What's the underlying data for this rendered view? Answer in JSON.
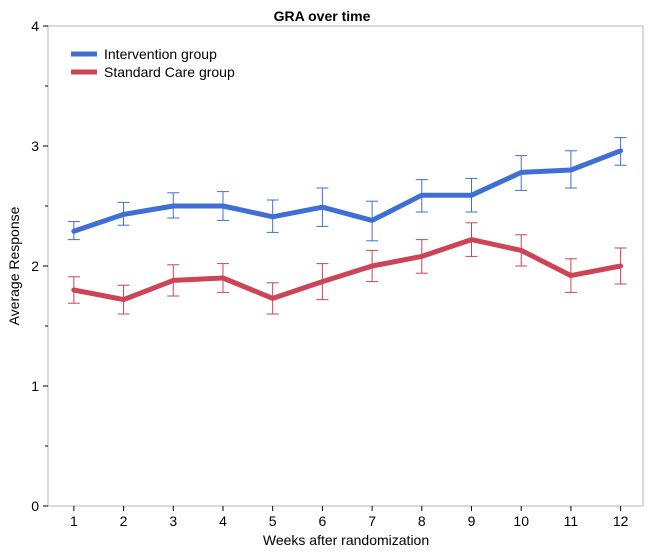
{
  "chart_data": {
    "type": "line",
    "title": "GRA over time",
    "xlabel": "Weeks after randomization",
    "ylabel": "Average Response",
    "x": [
      1,
      2,
      3,
      4,
      5,
      6,
      7,
      8,
      9,
      10,
      11,
      12
    ],
    "ylim": [
      0,
      4
    ],
    "yticks": [
      0,
      1,
      2,
      3,
      4
    ],
    "grid": false,
    "legend_position": "top-left",
    "series": [
      {
        "name": "Intervention group",
        "color": "#3f6fd6",
        "values": [
          2.29,
          2.43,
          2.5,
          2.5,
          2.41,
          2.49,
          2.38,
          2.59,
          2.59,
          2.78,
          2.8,
          2.96
        ],
        "err_low": [
          2.22,
          2.34,
          2.4,
          2.38,
          2.28,
          2.33,
          2.21,
          2.45,
          2.45,
          2.63,
          2.65,
          2.84
        ],
        "err_high": [
          2.37,
          2.53,
          2.61,
          2.62,
          2.55,
          2.65,
          2.54,
          2.72,
          2.73,
          2.92,
          2.96,
          3.07
        ]
      },
      {
        "name": "Standard Care group",
        "color": "#cc4455",
        "values": [
          1.8,
          1.72,
          1.88,
          1.9,
          1.73,
          1.87,
          2.0,
          2.08,
          2.22,
          2.13,
          1.92,
          2.0
        ],
        "err_low": [
          1.69,
          1.6,
          1.75,
          1.78,
          1.6,
          1.72,
          1.87,
          1.94,
          2.08,
          2.0,
          1.78,
          1.85
        ],
        "err_high": [
          1.91,
          1.84,
          2.01,
          2.02,
          1.86,
          2.02,
          2.13,
          2.22,
          2.36,
          2.26,
          2.06,
          2.15
        ]
      }
    ]
  }
}
